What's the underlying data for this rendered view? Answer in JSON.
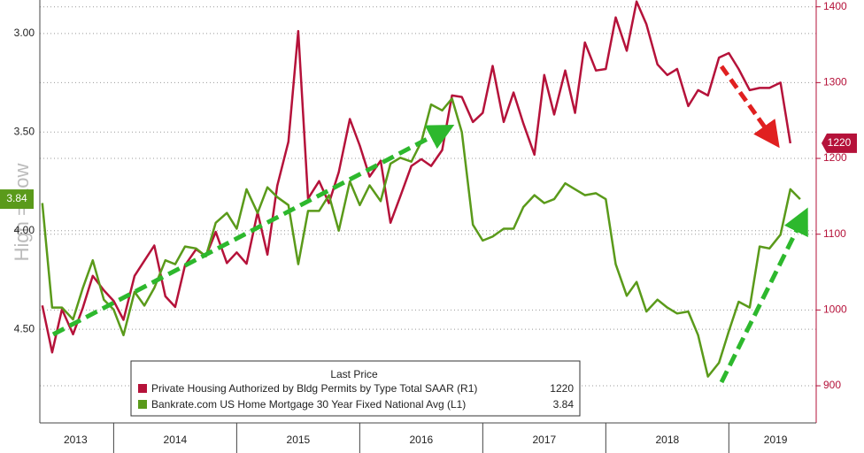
{
  "chart_data": {
    "type": "line",
    "ylabel": "High = Low",
    "legend_title": "Last Price",
    "x": [
      2013.42,
      2013.5,
      2013.58,
      2013.67,
      2013.75,
      2013.83,
      2013.92,
      2014.0,
      2014.08,
      2014.17,
      2014.25,
      2014.33,
      2014.42,
      2014.5,
      2014.58,
      2014.67,
      2014.75,
      2014.83,
      2014.92,
      2015.0,
      2015.08,
      2015.17,
      2015.25,
      2015.33,
      2015.42,
      2015.5,
      2015.58,
      2015.67,
      2015.75,
      2015.83,
      2015.92,
      2016.0,
      2016.08,
      2016.17,
      2016.25,
      2016.33,
      2016.42,
      2016.5,
      2016.58,
      2016.67,
      2016.75,
      2016.83,
      2016.92,
      2017.0,
      2017.08,
      2017.17,
      2017.25,
      2017.33,
      2017.42,
      2017.5,
      2017.58,
      2017.67,
      2017.75,
      2017.83,
      2017.92,
      2018.0,
      2018.08,
      2018.17,
      2018.25,
      2018.33,
      2018.42,
      2018.5,
      2018.58,
      2018.67,
      2018.75,
      2018.83,
      2018.92,
      2019.0,
      2019.08,
      2019.17,
      2019.25,
      2019.33,
      2019.42,
      2019.5,
      2019.58
    ],
    "series": [
      {
        "name": "Private Housing Authorized by Bldg Permits by Type Total SAAR  (R1)",
        "color": "#b5123a",
        "axis": "y2",
        "values": [
          1006,
          944,
          1001,
          968,
          1003,
          1045,
          1026,
          1012,
          987,
          1045,
          1065,
          1085,
          1018,
          1004,
          1059,
          1080,
          1071,
          1103,
          1062,
          1076,
          1061,
          1129,
          1073,
          1164,
          1222,
          1368,
          1147,
          1170,
          1141,
          1182,
          1252,
          1217,
          1176,
          1197,
          1115,
          1150,
          1190,
          1199,
          1190,
          1211,
          1283,
          1281,
          1248,
          1260,
          1322,
          1248,
          1287,
          1246,
          1205,
          1310,
          1258,
          1316,
          1260,
          1353,
          1316,
          1318,
          1386,
          1342,
          1407,
          1377,
          1324,
          1310,
          1318,
          1269,
          1290,
          1283,
          1333,
          1339,
          1318,
          1290,
          1293,
          1293,
          1300,
          1220,
          null
        ]
      },
      {
        "name": "Bankrate.com US Home Mortgage 30 Year Fixed National Avg  (L1)",
        "color": "#5a9a1a",
        "axis": "y",
        "values": [
          3.86,
          4.39,
          4.39,
          4.45,
          4.29,
          4.15,
          4.35,
          4.4,
          4.53,
          4.31,
          4.38,
          4.29,
          4.15,
          4.17,
          4.08,
          4.09,
          4.13,
          3.96,
          3.91,
          3.99,
          3.79,
          3.91,
          3.78,
          3.83,
          3.87,
          4.17,
          3.9,
          3.9,
          3.82,
          4.0,
          3.75,
          3.87,
          3.77,
          3.85,
          3.66,
          3.63,
          3.65,
          3.55,
          3.36,
          3.39,
          3.33,
          3.5,
          3.97,
          4.05,
          4.03,
          3.99,
          3.99,
          3.88,
          3.82,
          3.86,
          3.84,
          3.76,
          3.79,
          3.82,
          3.81,
          3.84,
          4.17,
          4.33,
          4.26,
          4.41,
          4.35,
          4.39,
          4.42,
          4.41,
          4.53,
          4.74,
          4.67,
          4.51,
          4.36,
          4.39,
          4.08,
          4.09,
          4.02,
          3.79,
          3.84
        ]
      }
    ],
    "xlim": [
      2013.4,
      2019.71
    ],
    "xticks": [
      {
        "value": 2013.69,
        "label": "2013"
      },
      {
        "value": 2014.5,
        "label": "2014"
      },
      {
        "value": 2015.5,
        "label": "2015"
      },
      {
        "value": 2016.5,
        "label": "2016"
      },
      {
        "value": 2017.5,
        "label": "2017"
      },
      {
        "value": 2018.5,
        "label": "2018"
      },
      {
        "value": 2019.38,
        "label": "2019"
      }
    ],
    "xgrid": [
      2014,
      2015,
      2016,
      2017,
      2018,
      2019
    ],
    "ylim": [
      4.975,
      2.83
    ],
    "yticks": [
      {
        "value": 3,
        "label": "3.00"
      },
      {
        "value": 3.5,
        "label": "3.50"
      },
      {
        "value": 4,
        "label": "4.00"
      },
      {
        "value": 4.5,
        "label": "4.50"
      }
    ],
    "y2lim": [
      851,
      1409
    ],
    "y2ticks": [
      900,
      1000,
      1100,
      1200,
      1300,
      1400
    ],
    "grid": true
  }
}
